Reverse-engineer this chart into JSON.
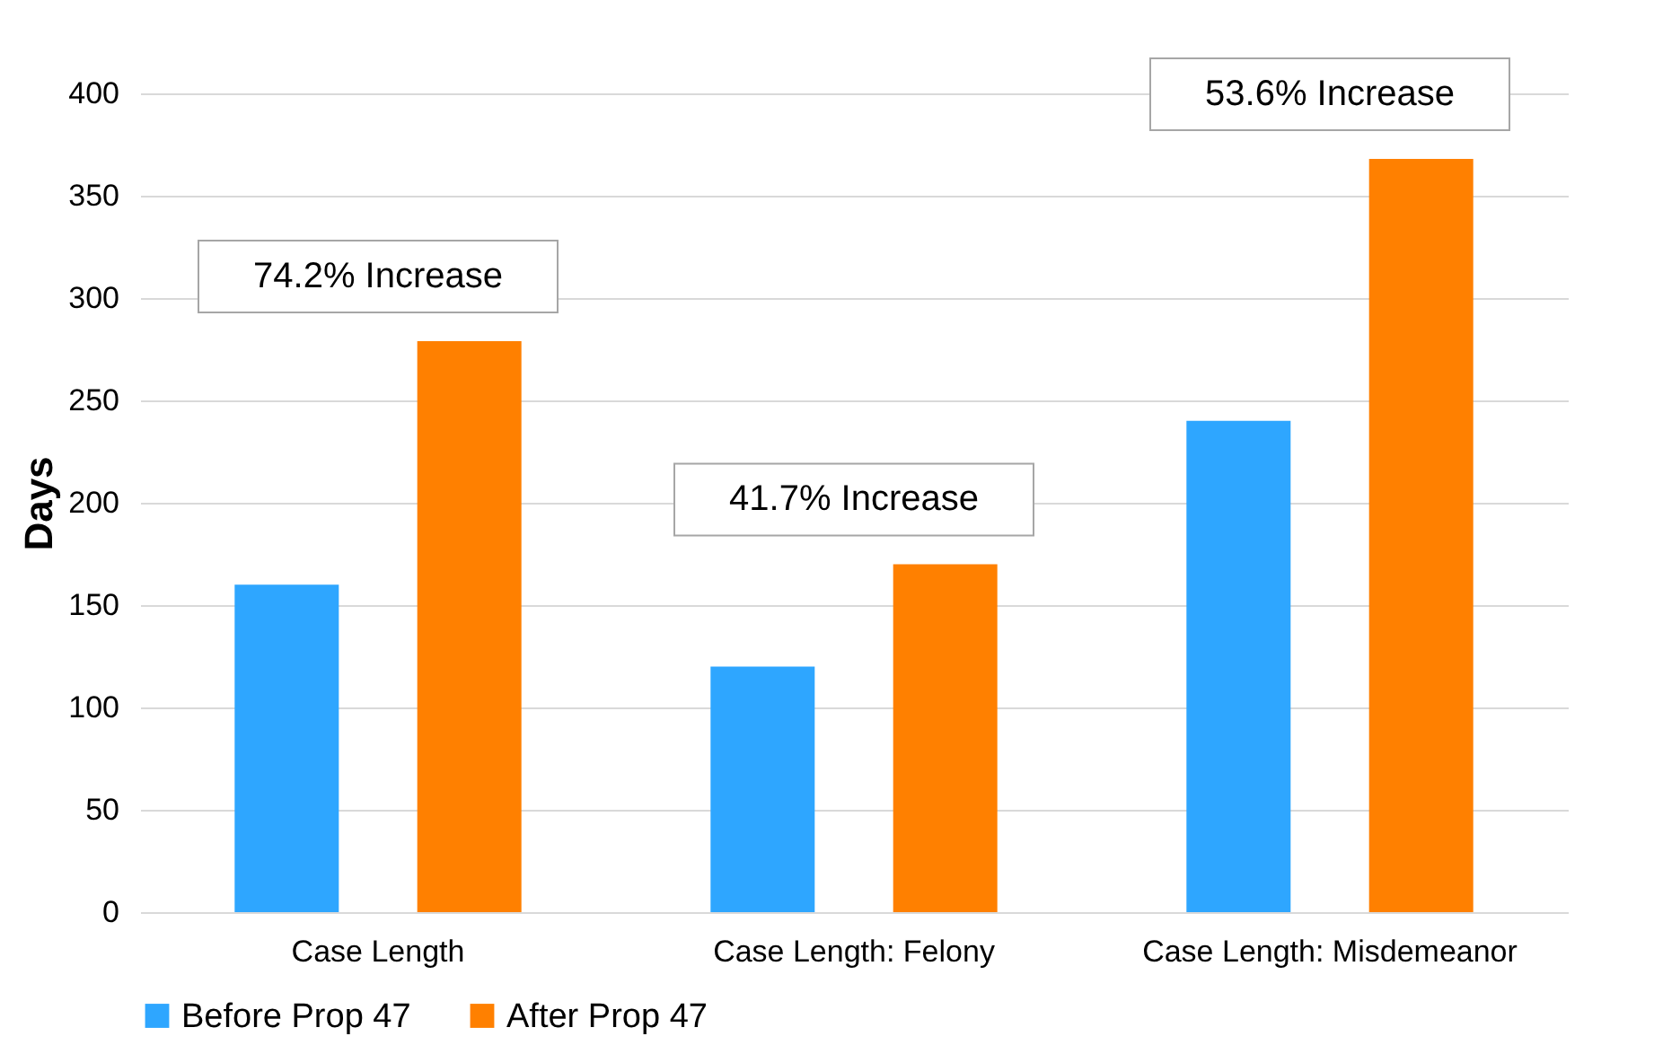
{
  "chart_data": {
    "type": "bar",
    "ylabel": "Days",
    "categories": [
      "Case Length",
      "Case Length: Felony",
      "Case Length: Misdemeanor"
    ],
    "series": [
      {
        "name": "Before Prop 47",
        "color": "#2ea6ff",
        "values": [
          160,
          120,
          240
        ]
      },
      {
        "name": "After Prop 47",
        "color": "#ff8000",
        "values": [
          279,
          170,
          368
        ]
      }
    ],
    "ylim": [
      0,
      400
    ],
    "yticks": [
      0,
      50,
      100,
      150,
      200,
      250,
      300,
      350,
      400
    ],
    "grid": "y",
    "legend": "bottom",
    "annotations": [
      "74.2% Increase",
      "41.7% Increase",
      "53.6% Increase"
    ]
  }
}
